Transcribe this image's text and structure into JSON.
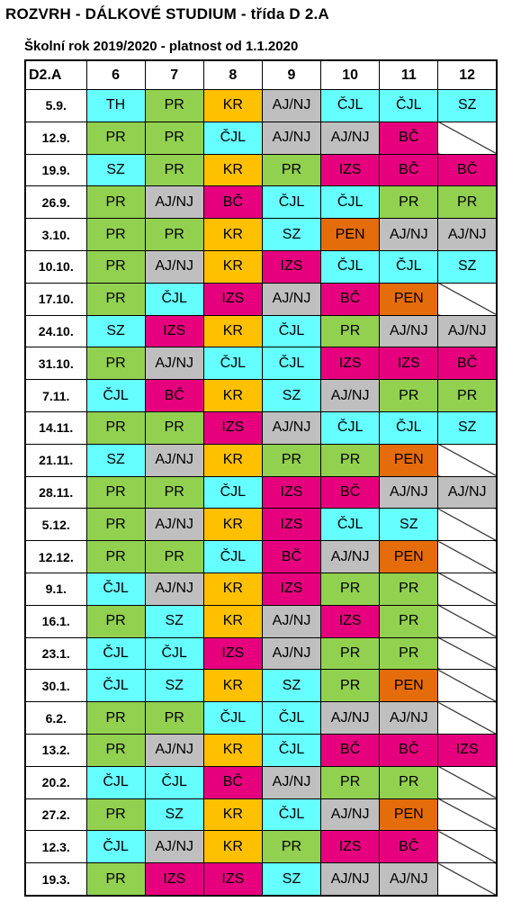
{
  "title": "ROZVRH -  DÁLKOVÉ STUDIUM - třída D 2.A",
  "subtitle": "Školní rok 2019/2020 - platnost od 1.1.2020",
  "header": {
    "class_label": "D2.A",
    "periods": [
      "6",
      "7",
      "8",
      "9",
      "10",
      "11",
      "12"
    ]
  },
  "colors": {
    "TH": "#66ffff",
    "ČJL": "#66ffff",
    "SZ": "#66ffff",
    "PR": "#92d050",
    "KR": "#ffc000",
    "AJ/NJ": "#bfbfbf",
    "BČ": "#e6007e",
    "IZS": "#e6007e",
    "PEN": "#e46c0a"
  },
  "rows": [
    {
      "date": "5.9.",
      "subjects": [
        "TH",
        "PR",
        "KR",
        "AJ/NJ",
        "ČJL",
        "ČJL",
        "SZ"
      ]
    },
    {
      "date": "12.9.",
      "subjects": [
        "PR",
        "PR",
        "ČJL",
        "AJ/NJ",
        "AJ/NJ",
        "BČ",
        ""
      ]
    },
    {
      "date": "19.9.",
      "subjects": [
        "SZ",
        "PR",
        "KR",
        "PR",
        "IZS",
        "BČ",
        "BČ"
      ]
    },
    {
      "date": "26.9.",
      "subjects": [
        "PR",
        "AJ/NJ",
        "BČ",
        "ČJL",
        "ČJL",
        "PR",
        "PR"
      ]
    },
    {
      "date": "3.10.",
      "subjects": [
        "PR",
        "PR",
        "KR",
        "SZ",
        "PEN",
        "AJ/NJ",
        "AJ/NJ"
      ]
    },
    {
      "date": "10.10.",
      "subjects": [
        "PR",
        "AJ/NJ",
        "KR",
        "IZS",
        "ČJL",
        "ČJL",
        "SZ"
      ]
    },
    {
      "date": "17.10.",
      "subjects": [
        "PR",
        "ČJL",
        "IZS",
        "AJ/NJ",
        "BČ",
        "PEN",
        ""
      ]
    },
    {
      "date": "24.10.",
      "subjects": [
        "SZ",
        "IZS",
        "KR",
        "ČJL",
        "PR",
        "AJ/NJ",
        "AJ/NJ"
      ]
    },
    {
      "date": "31.10.",
      "subjects": [
        "PR",
        "AJ/NJ",
        "ČJL",
        "ČJL",
        "IZS",
        "IZS",
        "BČ"
      ]
    },
    {
      "date": "7.11.",
      "subjects": [
        "ČJL",
        "BČ",
        "KR",
        "SZ",
        "AJ/NJ",
        "PR",
        "PR"
      ]
    },
    {
      "date": "14.11.",
      "subjects": [
        "PR",
        "PR",
        "IZS",
        "AJ/NJ",
        "ČJL",
        "ČJL",
        "SZ"
      ]
    },
    {
      "date": "21.11.",
      "subjects": [
        "SZ",
        "AJ/NJ",
        "KR",
        "PR",
        "PR",
        "PEN",
        ""
      ]
    },
    {
      "date": "28.11.",
      "subjects": [
        "PR",
        "PR",
        "ČJL",
        "IZS",
        "BČ",
        "AJ/NJ",
        "AJ/NJ"
      ]
    },
    {
      "date": "5.12.",
      "subjects": [
        "PR",
        "AJ/NJ",
        "KR",
        "IZS",
        "ČJL",
        "SZ",
        ""
      ]
    },
    {
      "date": "12.12.",
      "subjects": [
        "PR",
        "PR",
        "ČJL",
        "BČ",
        "AJ/NJ",
        "PEN",
        ""
      ]
    },
    {
      "date": "9.1.",
      "subjects": [
        "ČJL",
        "AJ/NJ",
        "KR",
        "IZS",
        "PR",
        "PR",
        ""
      ]
    },
    {
      "date": "16.1.",
      "subjects": [
        "PR",
        "SZ",
        "KR",
        "AJ/NJ",
        "IZS",
        "PR",
        ""
      ]
    },
    {
      "date": "23.1.",
      "subjects": [
        "ČJL",
        "ČJL",
        "IZS",
        "AJ/NJ",
        "PR",
        "PR",
        ""
      ]
    },
    {
      "date": "30.1.",
      "subjects": [
        "ČJL",
        "SZ",
        "KR",
        "SZ",
        "PR",
        "PEN",
        ""
      ]
    },
    {
      "date": "6.2.",
      "subjects": [
        "PR",
        "PR",
        "ČJL",
        "ČJL",
        "AJ/NJ",
        "AJ/NJ",
        ""
      ]
    },
    {
      "date": "13.2.",
      "subjects": [
        "PR",
        "AJ/NJ",
        "KR",
        "ČJL",
        "BČ",
        "BČ",
        "IZS"
      ]
    },
    {
      "date": "20.2.",
      "subjects": [
        "ČJL",
        "ČJL",
        "BČ",
        "AJ/NJ",
        "PR",
        "PR",
        ""
      ]
    },
    {
      "date": "27.2.",
      "subjects": [
        "PR",
        "SZ",
        "KR",
        "ČJL",
        "AJ/NJ",
        "PEN",
        ""
      ]
    },
    {
      "date": "12.3.",
      "subjects": [
        "ČJL",
        "AJ/NJ",
        "KR",
        "PR",
        "IZS",
        "BČ",
        ""
      ]
    },
    {
      "date": "19.3.",
      "subjects": [
        "PR",
        "IZS",
        "IZS",
        "SZ",
        "AJ/NJ",
        "AJ/NJ",
        ""
      ]
    }
  ]
}
